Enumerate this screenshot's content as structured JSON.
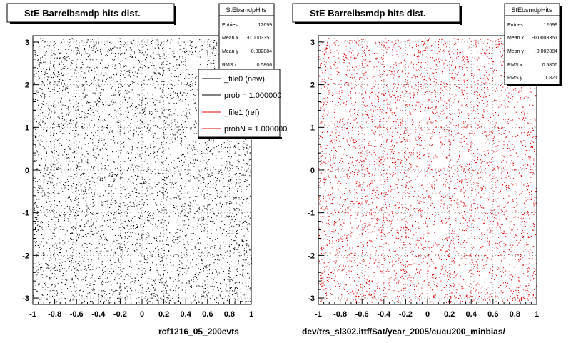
{
  "chart_data": [
    {
      "type": "scatter",
      "title": "StE Barrelbsmdp hits dist.",
      "xlim": [
        -1,
        1
      ],
      "ylim": [
        -3.15,
        3.15
      ],
      "x_ticks": [
        "-1",
        "-0.8",
        "-0.6",
        "-0.4",
        "-0.2",
        "0",
        "0.2",
        "0.4",
        "0.6",
        "0.8",
        "1"
      ],
      "y_ticks": [
        "-3",
        "-2",
        "-1",
        "0",
        "1",
        "2",
        "3"
      ],
      "grid": true,
      "marker_color": "#000000",
      "xlabel": "rcf1216_05_200evts",
      "stats": {
        "title": "StEbsmdpHits",
        "rows": [
          {
            "label": "Entries",
            "value": "12699"
          },
          {
            "label": "Mean x",
            "value": "-0.0003351"
          },
          {
            "label": "Mean y",
            "value": "-0.002884"
          },
          {
            "label": "RMS x",
            "value": "0.5806"
          }
        ]
      },
      "legend": {
        "placement": "top-right",
        "entries": [
          {
            "label": "_file0 (new)",
            "color": "#000000"
          },
          {
            "label": "prob = 1.000000",
            "color": "#000000"
          },
          {
            "label": "_file1 (ref)",
            "color": "#dd0000"
          },
          {
            "label": "probN = 1.000000",
            "color": "#dd0000"
          }
        ]
      }
    },
    {
      "type": "scatter",
      "title": "StE Barrelbsmdp hits dist.",
      "xlim": [
        -1,
        1
      ],
      "ylim": [
        -3.15,
        3.15
      ],
      "x_ticks": [
        "-1",
        "-0.8",
        "-0.6",
        "-0.4",
        "-0.2",
        "0",
        "0.2",
        "0.4",
        "0.6",
        "0.8",
        "1"
      ],
      "y_ticks": [
        "-3",
        "-2",
        "-1",
        "0",
        "1",
        "2",
        "3"
      ],
      "grid": true,
      "marker_color": "#dd0000",
      "xlabel": "dev/trs_sl302.ittf/Sat/year_2005/cucu200_minbias/",
      "stats": {
        "title": "StEbsmdpHits",
        "rows": [
          {
            "label": "Entries",
            "value": "12699"
          },
          {
            "label": "Mean x",
            "value": "-0.0003351"
          },
          {
            "label": "Mean y",
            "value": "-0.002884"
          },
          {
            "label": "RMS x",
            "value": "0.5806"
          },
          {
            "label": "RMS y",
            "value": "1.821"
          }
        ]
      }
    }
  ]
}
